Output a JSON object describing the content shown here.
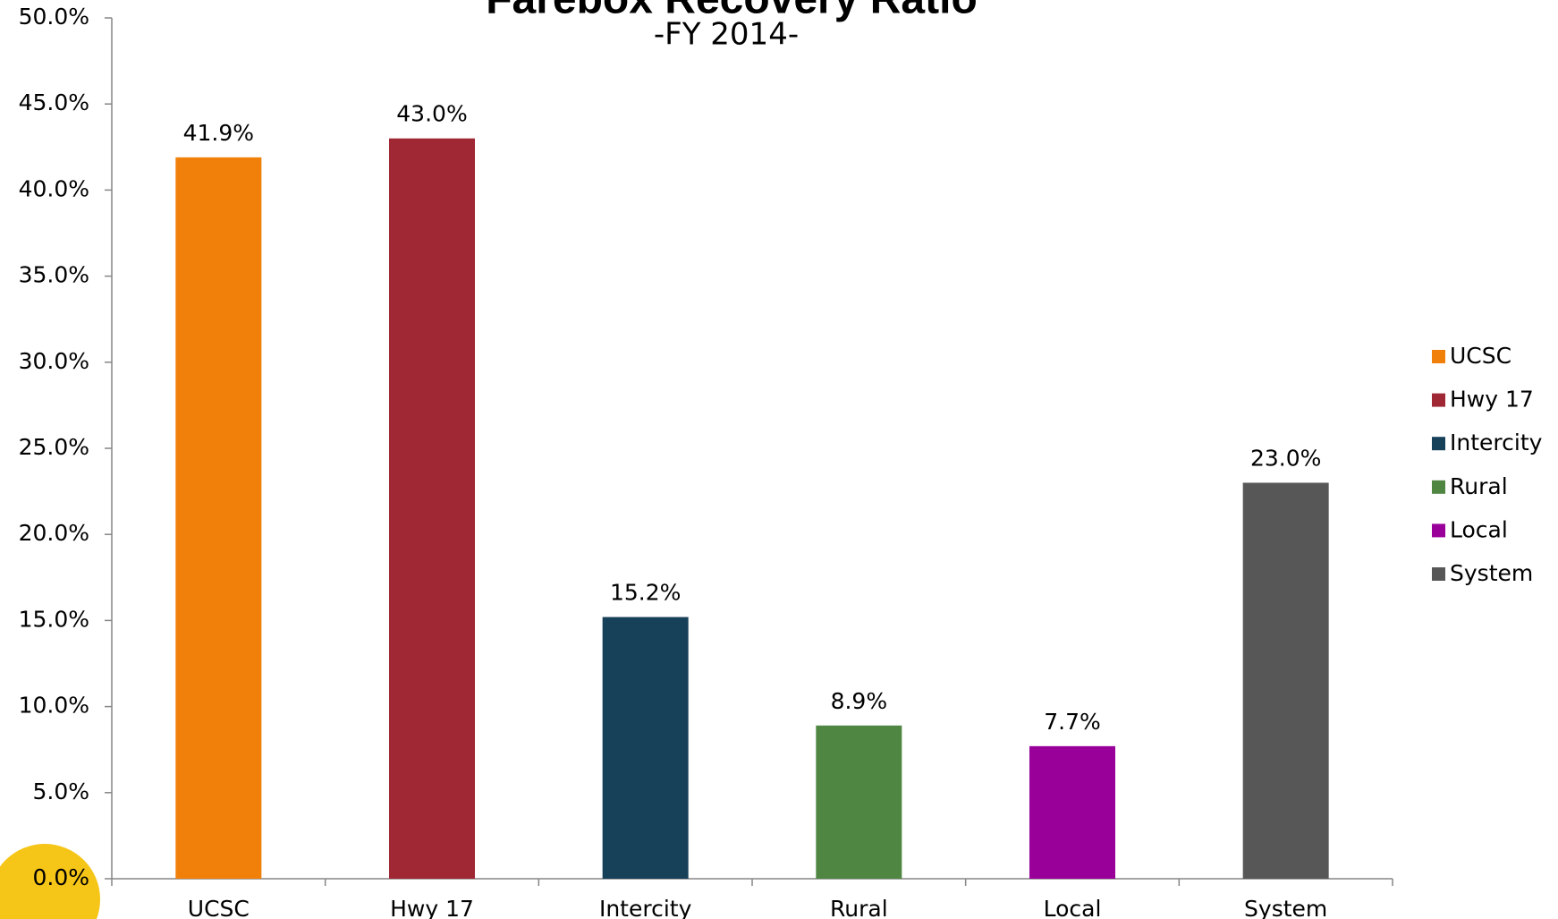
{
  "chart_data": {
    "type": "bar",
    "title": "Farebox Recovery Ratio",
    "subtitle": "-FY 2014-",
    "categories": [
      "UCSC",
      "Hwy 17",
      "Intercity",
      "Rural",
      "Local",
      "System"
    ],
    "values": [
      41.9,
      43,
      15.2,
      8.9,
      7.7,
      23
    ],
    "value_labels": [
      "41.9%",
      "43.0%",
      "15.2%",
      "8.9%",
      "7.7%",
      "23.0%"
    ],
    "colors": [
      "#f0800a",
      "#a02834",
      "#174059",
      "#4f8642",
      "#990099",
      "#575757"
    ],
    "ylim": [
      0,
      50
    ],
    "yticks": [
      {
        "value": 0,
        "label": "0.0%"
      },
      {
        "value": 5,
        "label": "5.0%"
      },
      {
        "value": 10,
        "label": "10.0%"
      },
      {
        "value": 15,
        "label": "15.0%"
      },
      {
        "value": 20,
        "label": "20.0%"
      },
      {
        "value": 25,
        "label": "25.0%"
      },
      {
        "value": 30,
        "label": "30.0%"
      },
      {
        "value": 35,
        "label": "35.0%"
      },
      {
        "value": 40,
        "label": "40.0%"
      },
      {
        "value": 45,
        "label": "45.0%"
      },
      {
        "value": 50,
        "label": "50.0%"
      }
    ],
    "legend": "right",
    "grid": false
  }
}
